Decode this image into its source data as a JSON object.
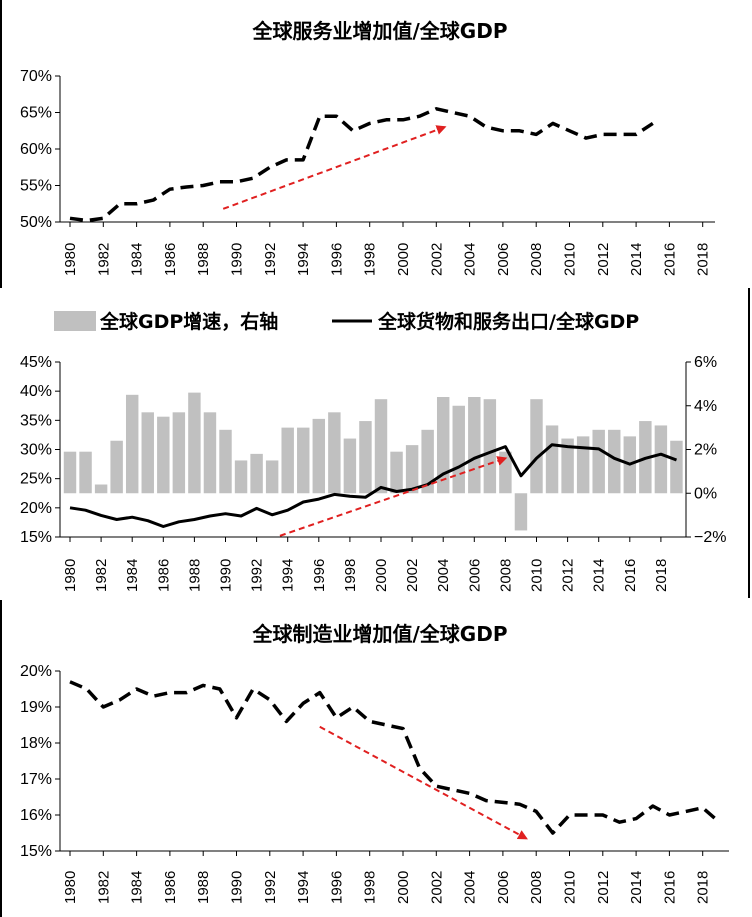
{
  "chart_data": [
    {
      "type": "line",
      "title": "全球服务业增加值/全球GDP",
      "x": [
        1980,
        1981,
        1982,
        1983,
        1984,
        1985,
        1986,
        1987,
        1988,
        1989,
        1990,
        1991,
        1992,
        1993,
        1994,
        1995,
        1996,
        1997,
        1998,
        1999,
        2000,
        2001,
        2002,
        2003,
        2004,
        2005,
        2006,
        2007,
        2008,
        2009,
        2010,
        2011,
        2012,
        2013,
        2014,
        2015
      ],
      "x_ticks": [
        "1980",
        "1982",
        "1984",
        "1986",
        "1988",
        "1990",
        "1992",
        "1994",
        "1996",
        "1998",
        "2000",
        "2002",
        "2004",
        "2006",
        "2008",
        "2010",
        "2012",
        "2014",
        "2016",
        "2018"
      ],
      "series": [
        {
          "style": "dashed",
          "color": "#000000",
          "values": [
            50.5,
            50.2,
            50.5,
            52.5,
            52.5,
            53.0,
            54.5,
            54.8,
            55.0,
            55.5,
            55.5,
            56.0,
            57.5,
            58.5,
            58.5,
            64.5,
            64.5,
            62.5,
            63.5,
            64.0,
            64.0,
            64.5,
            65.5,
            65.0,
            64.5,
            63.0,
            62.5,
            62.5,
            62.0,
            63.5,
            62.5,
            61.5,
            62.0,
            62.0,
            62.0,
            63.5
          ]
        }
      ],
      "y_ticks": [
        "70%",
        "65%",
        "60%",
        "55%",
        "50%"
      ],
      "ylim": [
        50,
        70
      ],
      "trend_arrow": {
        "color": "#e02020",
        "from": [
          1989.2,
          51.8
        ],
        "to": [
          2002.5,
          63.0
        ]
      }
    },
    {
      "type": "bar+line",
      "legend": [
        "全球GDP增速，右轴",
        "全球货物和服务出口/全球GDP"
      ],
      "x": [
        1980,
        1981,
        1982,
        1983,
        1984,
        1985,
        1986,
        1987,
        1988,
        1989,
        1990,
        1991,
        1992,
        1993,
        1994,
        1995,
        1996,
        1997,
        1998,
        1999,
        2000,
        2001,
        2002,
        2003,
        2004,
        2005,
        2006,
        2007,
        2008,
        2009,
        2010,
        2011,
        2012,
        2013,
        2014,
        2015,
        2016,
        2017,
        2018,
        2019
      ],
      "x_ticks": [
        "1980",
        "1982",
        "1984",
        "1986",
        "1988",
        "1990",
        "1992",
        "1994",
        "1996",
        "1998",
        "2000",
        "2002",
        "2004",
        "2006",
        "2008",
        "2010",
        "2012",
        "2014",
        "2016",
        "2018"
      ],
      "series": [
        {
          "name": "全球GDP增速，右轴",
          "type": "bar",
          "axis": "right",
          "color": "#c0c0c0",
          "values": [
            1.9,
            1.9,
            0.4,
            2.4,
            4.5,
            3.7,
            3.5,
            3.7,
            4.6,
            3.7,
            2.9,
            1.5,
            1.8,
            1.5,
            3.0,
            3.0,
            3.4,
            3.7,
            2.5,
            3.3,
            4.3,
            1.9,
            2.2,
            2.9,
            4.4,
            4.0,
            4.4,
            4.3,
            1.9,
            -1.7,
            4.3,
            3.1,
            2.5,
            2.6,
            2.9,
            2.9,
            2.6,
            3.3,
            3.1,
            2.4
          ]
        },
        {
          "name": "全球货物和服务出口/全球GDP",
          "type": "line",
          "axis": "left",
          "color": "#000000",
          "values": [
            20.0,
            19.6,
            18.7,
            18.0,
            18.4,
            17.8,
            16.8,
            17.6,
            18.0,
            18.6,
            19.0,
            18.6,
            19.9,
            18.8,
            19.6,
            21.0,
            21.5,
            22.3,
            22.0,
            21.8,
            23.5,
            22.8,
            23.2,
            24.0,
            25.8,
            27.0,
            28.5,
            29.5,
            30.5,
            25.5,
            28.5,
            30.8,
            30.5,
            30.3,
            30.1,
            28.5,
            27.5,
            28.5,
            29.2,
            28.2
          ]
        }
      ],
      "y_left_ticks": [
        "45%",
        "40%",
        "35%",
        "30%",
        "25%",
        "20%",
        "15%"
      ],
      "y_right_ticks": [
        "6%",
        "4%",
        "2%",
        "0%",
        "−2%"
      ],
      "ylim_left": [
        15,
        45
      ],
      "ylim_right": [
        -2,
        6
      ],
      "trend_arrow": {
        "color": "#e02020",
        "from": [
          1993.5,
          15.2
        ],
        "to": [
          2008.0,
          28.5
        ]
      }
    },
    {
      "type": "line",
      "title": "全球制造业增加值/全球GDP",
      "x": [
        1980,
        1981,
        1982,
        1983,
        1984,
        1985,
        1986,
        1987,
        1988,
        1989,
        1990,
        1991,
        1992,
        1993,
        1994,
        1995,
        1996,
        1997,
        1998,
        1999,
        2000,
        2001,
        2002,
        2003,
        2004,
        2005,
        2006,
        2007,
        2008,
        2009,
        2010,
        2011,
        2012,
        2013,
        2014,
        2015,
        2016,
        2017,
        2018,
        2019
      ],
      "x_ticks": [
        "1980",
        "1982",
        "1984",
        "1986",
        "1988",
        "1990",
        "1992",
        "1994",
        "1996",
        "1998",
        "2000",
        "2002",
        "2004",
        "2006",
        "2008",
        "2010",
        "2012",
        "2014",
        "2016",
        "2018"
      ],
      "series": [
        {
          "style": "dashed",
          "color": "#000000",
          "values": [
            19.7,
            19.5,
            19.0,
            19.2,
            19.5,
            19.3,
            19.4,
            19.4,
            19.6,
            19.5,
            18.7,
            19.5,
            19.2,
            18.6,
            19.1,
            19.4,
            18.7,
            19.0,
            18.6,
            18.5,
            18.4,
            17.3,
            16.8,
            16.7,
            16.6,
            16.4,
            16.35,
            16.3,
            16.1,
            15.5,
            16.0,
            16.0,
            16.0,
            15.8,
            15.9,
            16.25,
            16.0,
            16.1,
            16.2,
            15.8
          ]
        }
      ],
      "y_ticks": [
        "20%",
        "19%",
        "18%",
        "17%",
        "16%",
        "15%"
      ],
      "ylim": [
        15,
        20
      ],
      "trend_arrow": {
        "color": "#e02020",
        "from": [
          1995.0,
          18.45
        ],
        "to": [
          2007.4,
          15.35
        ]
      }
    }
  ]
}
